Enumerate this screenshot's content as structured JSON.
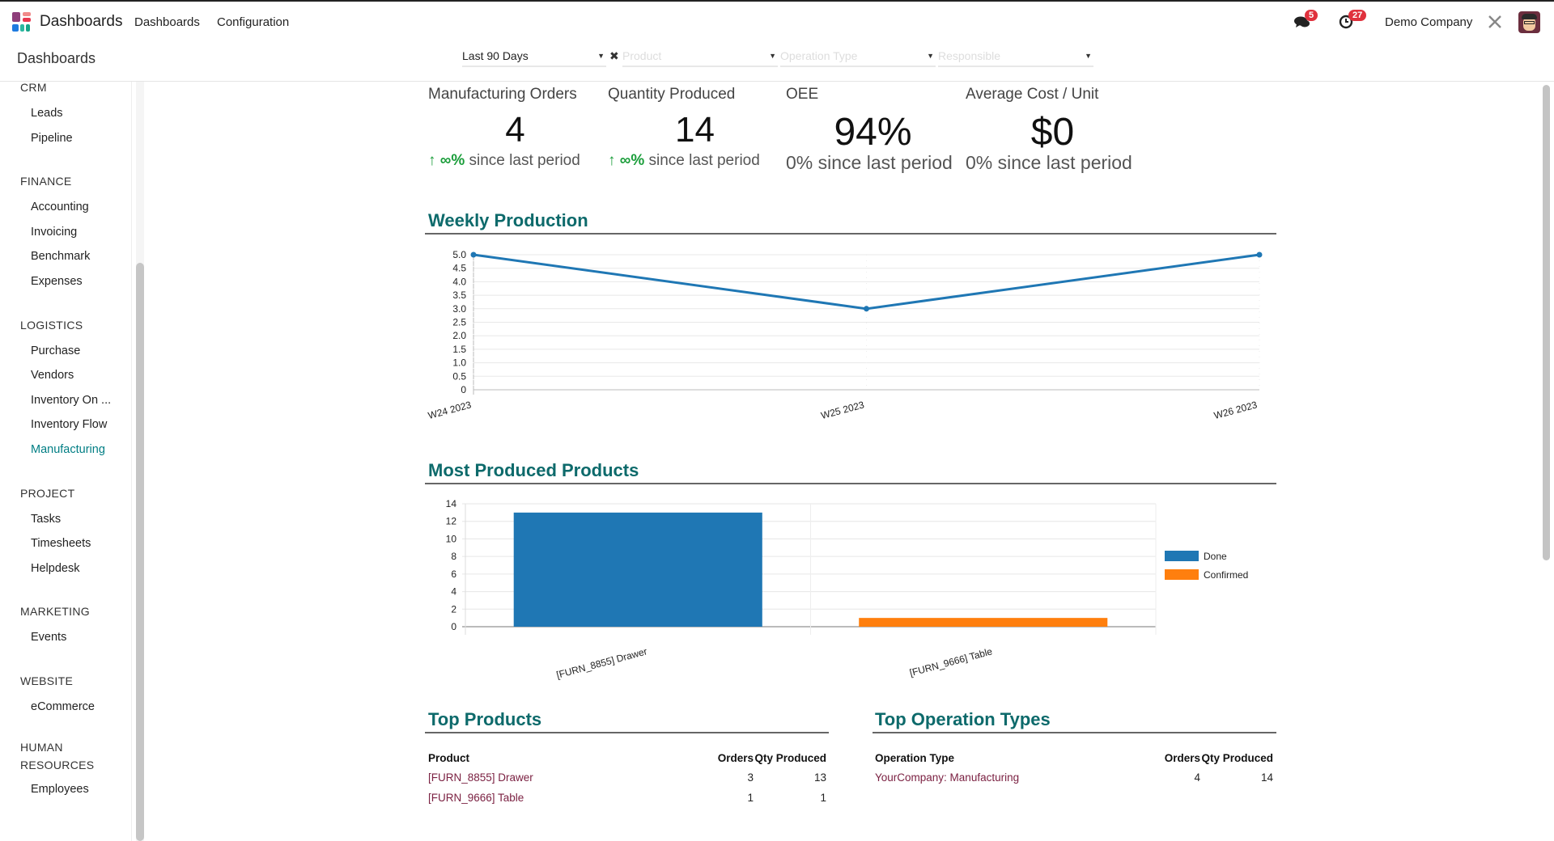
{
  "topbar": {
    "app_name": "Dashboards",
    "menu": [
      "Dashboards",
      "Configuration"
    ],
    "messages_badge": "5",
    "activities_badge": "27",
    "company": "Demo Company"
  },
  "breadcrumb": "Dashboards",
  "filters": {
    "period": "Last 90 Days",
    "product_placeholder": "Product",
    "operation_type_placeholder": "Operation Type",
    "responsible_placeholder": "Responsible"
  },
  "sidebar": [
    {
      "section": "CRM",
      "items": [
        "Leads",
        "Pipeline"
      ]
    },
    {
      "section": "FINANCE",
      "items": [
        "Accounting",
        "Invoicing",
        "Benchmark",
        "Expenses"
      ]
    },
    {
      "section": "LOGISTICS",
      "items": [
        "Purchase",
        "Vendors",
        "Inventory On ...",
        "Inventory Flow",
        "Manufacturing"
      ]
    },
    {
      "section": "PROJECT",
      "items": [
        "Tasks",
        "Timesheets",
        "Helpdesk"
      ]
    },
    {
      "section": "MARKETING",
      "items": [
        "Events"
      ]
    },
    {
      "section": "WEBSITE",
      "items": [
        "eCommerce"
      ]
    },
    {
      "section": "HUMAN RESOURCES",
      "items": [
        "Employees"
      ]
    }
  ],
  "active_item": "Manufacturing",
  "kpis": [
    {
      "title": "Manufacturing Orders",
      "value": "4",
      "arrow": "↑",
      "change": "∞%",
      "suffix": "since last period"
    },
    {
      "title": "Quantity Produced",
      "value": "14",
      "arrow": "↑",
      "change": "∞%",
      "suffix": "since last period"
    },
    {
      "title": "OEE",
      "value": "94%",
      "change": "0%",
      "suffix": "since last period"
    },
    {
      "title": "Average Cost / Unit",
      "value": "$0",
      "change": "0%",
      "suffix": "since last period"
    }
  ],
  "colors": {
    "accent": "#0d6a6b",
    "blue": "#1f77b4",
    "orange": "#ff7f0e",
    "link": "#7b2142",
    "badge": "#e0313d"
  },
  "chart_data": [
    {
      "type": "line",
      "title": "Weekly Production",
      "categories": [
        "W24 2023",
        "W25 2023",
        "W26 2023"
      ],
      "values": [
        5,
        3,
        5
      ],
      "ylim": [
        0,
        5
      ],
      "yticks": [
        "0",
        "0.5",
        "1.0",
        "1.5",
        "2.0",
        "2.5",
        "3.0",
        "3.5",
        "4.0",
        "4.5",
        "5.0"
      ],
      "grid": true
    },
    {
      "type": "bar",
      "stacked": true,
      "title": "Most Produced Products",
      "categories": [
        "[FURN_8855] Drawer",
        "[FURN_9666] Table"
      ],
      "series": [
        {
          "name": "Done",
          "values": [
            13,
            0
          ]
        },
        {
          "name": "Confirmed",
          "values": [
            0,
            1
          ]
        }
      ],
      "ylim": [
        0,
        14
      ],
      "yticks": [
        "0",
        "2",
        "4",
        "6",
        "8",
        "10",
        "12",
        "14"
      ],
      "legend": "right",
      "grid": true
    }
  ],
  "top_products": {
    "title": "Top Products",
    "headers": [
      "Product",
      "Orders",
      "Qty Produced"
    ],
    "rows": [
      [
        "[FURN_8855] Drawer",
        "3",
        "13"
      ],
      [
        "[FURN_9666] Table",
        "1",
        "1"
      ]
    ]
  },
  "top_operation_types": {
    "title": "Top Operation Types",
    "headers": [
      "Operation Type",
      "Orders",
      "Qty Produced"
    ],
    "rows": [
      [
        "YourCompany: Manufacturing",
        "4",
        "14"
      ]
    ]
  }
}
